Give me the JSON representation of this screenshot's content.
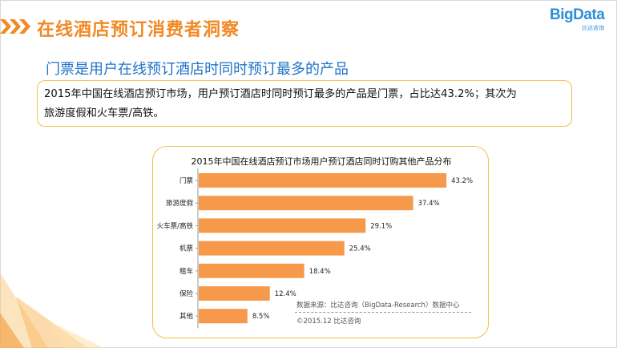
{
  "header": {
    "title": "在线酒店预订消费者洞察",
    "logo_text": "BigData",
    "logo_sub": "比达咨询"
  },
  "subtitle": "门票是用户在线预订酒店时同时预订最多的产品",
  "summary": {
    "line1": "2015年中国在线酒店预订市场，用户预订酒店时同时预订最多的产品是门票，占比达43.2%；其次为",
    "line2": "旅游度假和火车票/高铁。"
  },
  "chart_data": {
    "type": "bar",
    "orientation": "horizontal",
    "title": "2015年中国在线酒店预订市场用户预订酒店同时订购其他产品分布",
    "categories": [
      "门票",
      "旅游度假",
      "火车票/高铁",
      "机票",
      "租车",
      "保险",
      "其他"
    ],
    "values": [
      43.2,
      37.4,
      29.1,
      25.4,
      18.4,
      12.4,
      8.5
    ],
    "value_labels": [
      "43.2%",
      "37.4%",
      "29.1%",
      "25.4%",
      "18.4%",
      "12.4%",
      "8.5%"
    ],
    "unit": "%",
    "xlim": [
      0,
      45
    ],
    "color": "#f7994a",
    "grid": false
  },
  "footer": {
    "source": "数据来源：比达咨询（BigData-Research）数据中心",
    "copyright": "©2015.12  比达咨询"
  },
  "colors": {
    "accent_orange": "#f08a24",
    "subtitle_blue": "#1e73c9",
    "border_yellow": "#f0c24a",
    "bar_orange": "#f7994a"
  }
}
